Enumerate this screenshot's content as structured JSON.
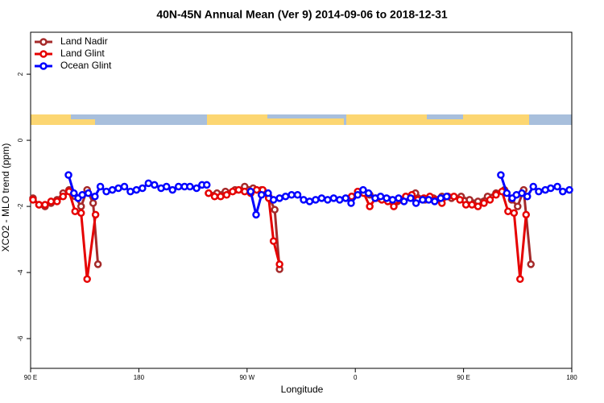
{
  "chart_data": {
    "type": "line",
    "title": "40N-45N Annual Mean (Ver 9)   2014-09-06 to 2018-12-31",
    "x_label": "Longitude",
    "y_label": "XCO2 - MLO trend (ppm)",
    "xlim": [
      90,
      540
    ],
    "ylim": [
      -6.9,
      3.27
    ],
    "xticks": [
      {
        "value": 90,
        "label": "90 E"
      },
      180,
      {
        "value": 270,
        "label": "90 W"
      },
      {
        "value": 360,
        "label": "0"
      },
      {
        "value": 450,
        "label": "90 E"
      },
      {
        "value": 540,
        "label": "180"
      }
    ],
    "yticks": [
      -6,
      -4,
      -2,
      0,
      2
    ],
    "legend": "top-left",
    "series": [
      {
        "name": "Land Nadir",
        "color": "#a52a2a",
        "x": [
          92,
          97,
          102,
          107,
          112,
          117,
          122,
          127,
          132,
          137,
          142,
          146,
          null,
          238,
          245,
          252,
          260,
          268,
          275,
          282,
          288,
          293,
          297,
          null,
          357,
          365,
          372,
          380,
          388,
          395,
          402,
          410,
          418,
          425,
          432,
          440,
          448,
          455,
          462,
          470,
          477,
          484,
          490,
          495,
          500,
          506
        ],
        "values": [
          -1.75,
          -1.95,
          -2.0,
          -1.9,
          -1.8,
          -1.6,
          -1.5,
          -1.7,
          -2.0,
          -1.5,
          -1.9,
          -3.75,
          null,
          -1.6,
          -1.6,
          -1.55,
          -1.5,
          -1.4,
          -1.45,
          -1.5,
          -1.7,
          -2.1,
          -3.9,
          null,
          -1.7,
          -1.55,
          -1.65,
          -1.75,
          -1.8,
          -1.85,
          -1.7,
          -1.6,
          -1.8,
          -1.75,
          -1.7,
          -1.75,
          -1.7,
          -1.8,
          -1.85,
          -1.7,
          -1.6,
          -1.5,
          -1.8,
          -2.0,
          -1.5,
          -3.75
        ]
      },
      {
        "name": "Land Glint",
        "color": "#e60000",
        "x": [
          92,
          97,
          102,
          107,
          112,
          117,
          122,
          127,
          132,
          137,
          144,
          null,
          238,
          243,
          248,
          253,
          258,
          263,
          268,
          273,
          278,
          283,
          288,
          292,
          297,
          null,
          357,
          362,
          367,
          372,
          377,
          382,
          387,
          392,
          397,
          402,
          407,
          412,
          417,
          422,
          427,
          432,
          437,
          442,
          447,
          452,
          457,
          462,
          467,
          472,
          477,
          482,
          487,
          492,
          497,
          502
        ],
        "values": [
          -1.8,
          -1.95,
          -1.95,
          -1.85,
          -1.85,
          -1.7,
          -1.55,
          -2.15,
          -2.2,
          -4.2,
          -2.25,
          null,
          -1.6,
          -1.7,
          -1.7,
          -1.65,
          -1.55,
          -1.5,
          -1.55,
          -1.6,
          -1.5,
          -1.5,
          -1.75,
          -3.05,
          -3.75,
          null,
          -1.7,
          -1.55,
          -1.6,
          -2.0,
          -1.75,
          -1.8,
          -1.85,
          -2.0,
          -1.8,
          -1.7,
          -1.65,
          -1.8,
          -1.75,
          -1.7,
          -1.8,
          -1.9,
          -1.7,
          -1.7,
          -1.8,
          -1.95,
          -1.95,
          -2.0,
          -1.9,
          -1.8,
          -1.65,
          -1.55,
          -2.15,
          -2.2,
          -4.2,
          -2.25
        ]
      },
      {
        "name": "Ocean Glint",
        "color": "#0000ff",
        "x": [
          121.5,
          126,
          129.5,
          133,
          138,
          143.5,
          148,
          153,
          158,
          163,
          168,
          173,
          178,
          183,
          188,
          193,
          198.5,
          203,
          208,
          213,
          218,
          222.5,
          228,
          232.5,
          236.5,
          null,
          273,
          277.5,
          282,
          287.5,
          292,
          297,
          302,
          307,
          312,
          317,
          322,
          327,
          332,
          337,
          342,
          347,
          352,
          356.5,
          362,
          366.5,
          371,
          376.5,
          381,
          386,
          391,
          396,
          400.5,
          406,
          410.5,
          416,
          421,
          426,
          431,
          436,
          null,
          481,
          486,
          490.5,
          494,
          498.5,
          503,
          508,
          512.5,
          518,
          522.5,
          528,
          532.5,
          538
        ],
        "values": [
          -1.05,
          -1.6,
          -1.75,
          -1.65,
          -1.6,
          -1.7,
          -1.4,
          -1.55,
          -1.5,
          -1.45,
          -1.4,
          -1.55,
          -1.5,
          -1.45,
          -1.3,
          -1.35,
          -1.45,
          -1.4,
          -1.5,
          -1.4,
          -1.4,
          -1.4,
          -1.45,
          -1.35,
          -1.35,
          null,
          -1.55,
          -2.25,
          -1.65,
          -1.6,
          -1.8,
          -1.75,
          -1.7,
          -1.65,
          -1.65,
          -1.8,
          -1.85,
          -1.8,
          -1.75,
          -1.8,
          -1.75,
          -1.8,
          -1.75,
          -1.9,
          -1.65,
          -1.5,
          -1.6,
          -1.75,
          -1.7,
          -1.75,
          -1.8,
          -1.75,
          -1.85,
          -1.75,
          -1.9,
          -1.8,
          -1.8,
          -1.85,
          -1.75,
          -1.7,
          null,
          -1.05,
          -1.6,
          -1.75,
          -1.65,
          -1.6,
          -1.7,
          -1.4,
          -1.55,
          -1.5,
          -1.45,
          -1.4,
          -1.55,
          -1.5
        ]
      }
    ]
  }
}
